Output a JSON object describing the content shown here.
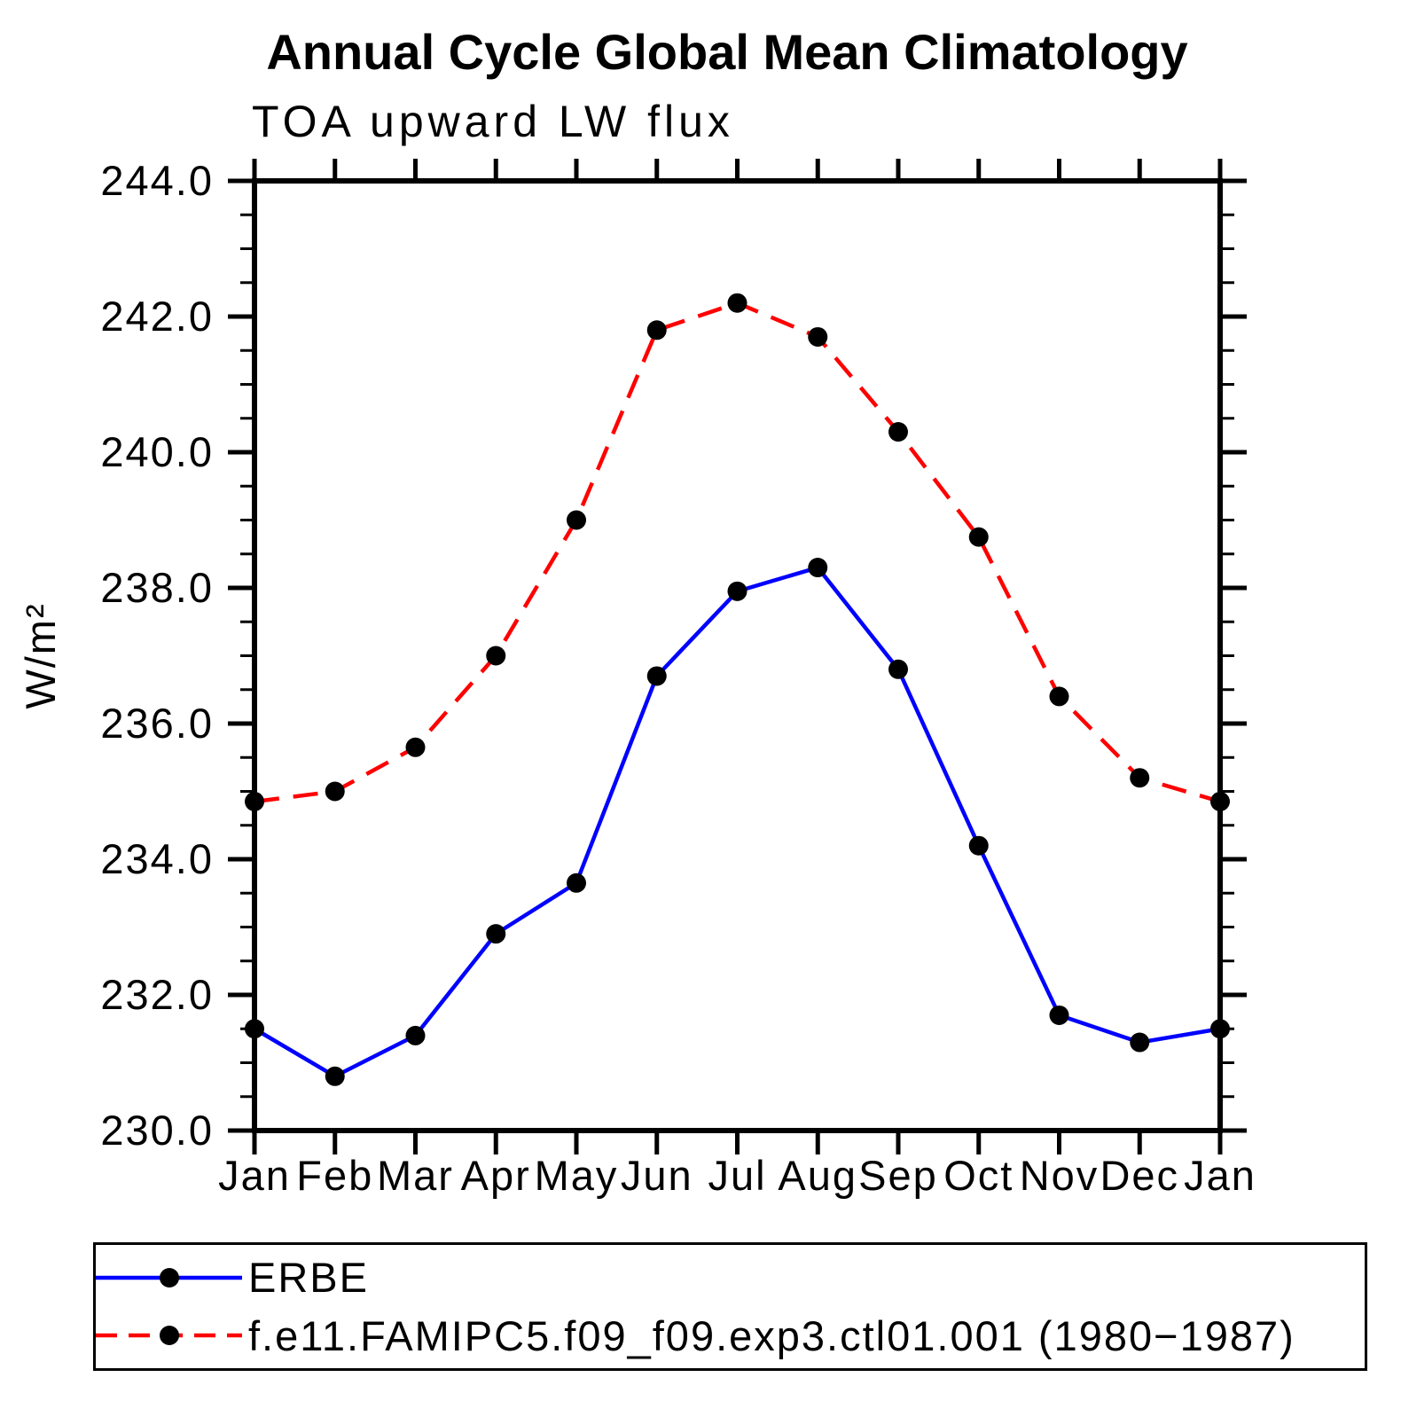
{
  "title": "Annual Cycle Global Mean Climatology",
  "subtitle": "TOA upward LW flux",
  "ylabel": "W/m²",
  "chart_data": {
    "type": "line",
    "title": "Annual Cycle Global Mean Climatology",
    "subtitle": "TOA upward LW flux",
    "xlabel": "",
    "ylabel": "W/m²",
    "categories": [
      "Jan",
      "Feb",
      "Mar",
      "Apr",
      "May",
      "Jun",
      "Jul",
      "Aug",
      "Sep",
      "Oct",
      "Nov",
      "Dec",
      "Jan"
    ],
    "series": [
      {
        "name": "ERBE",
        "color": "#0000ff",
        "line_style": "solid",
        "marker": "filled-circle",
        "values": [
          231.5,
          230.8,
          231.4,
          232.9,
          233.65,
          236.7,
          237.95,
          238.3,
          236.8,
          234.2,
          231.7,
          231.3,
          231.5
        ]
      },
      {
        "name": "f.e11.FAMIPC5.f09_f09.exp3.ctl01.001 (1980−1987)",
        "color": "#ff0000",
        "line_style": "dashed",
        "marker": "filled-circle",
        "values": [
          234.85,
          235.0,
          235.65,
          237.0,
          239.0,
          241.8,
          242.2,
          241.7,
          240.3,
          238.75,
          236.4,
          235.2,
          234.85
        ]
      }
    ],
    "ylim": [
      230.0,
      244.0
    ],
    "ytick_major": 2.0,
    "ytick_minor": 0.5,
    "ytick_labels": [
      "230.0",
      "232.0",
      "234.0",
      "236.0",
      "238.0",
      "240.0",
      "242.0",
      "244.0"
    ],
    "marker_color": "#000000",
    "axis_color": "#000000",
    "grid": "off",
    "legend_position": "bottom"
  },
  "legend": {
    "entries": [
      {
        "label": "ERBE"
      },
      {
        "label": "f.e11.FAMIPC5.f09_f09.exp3.ctl01.001 (1980−1987)"
      }
    ]
  }
}
